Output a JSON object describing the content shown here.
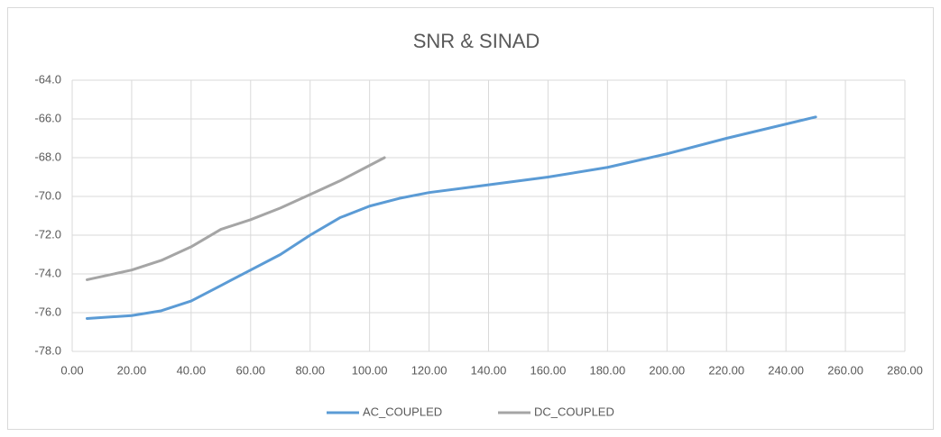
{
  "chart_data": {
    "type": "line",
    "title": "SNR & SINAD",
    "grid": true,
    "legend": "bottom",
    "xlim": [
      0,
      280
    ],
    "xticks": [
      {
        "value": 0,
        "label": "0.00"
      },
      {
        "value": 20,
        "label": "20.00"
      },
      {
        "value": 40,
        "label": "40.00"
      },
      {
        "value": 60,
        "label": "60.00"
      },
      {
        "value": 80,
        "label": "80.00"
      },
      {
        "value": 100,
        "label": "100.00"
      },
      {
        "value": 120,
        "label": "120.00"
      },
      {
        "value": 140,
        "label": "140.00"
      },
      {
        "value": 160,
        "label": "160.00"
      },
      {
        "value": 180,
        "label": "180.00"
      },
      {
        "value": 200,
        "label": "200.00"
      },
      {
        "value": 220,
        "label": "220.00"
      },
      {
        "value": 240,
        "label": "240.00"
      },
      {
        "value": 260,
        "label": "260.00"
      },
      {
        "value": 280,
        "label": "280.00"
      }
    ],
    "ylim": [
      -78,
      -64
    ],
    "yticks": [
      {
        "value": -64,
        "label": "-64.0"
      },
      {
        "value": -66,
        "label": "-66.0"
      },
      {
        "value": -68,
        "label": "-68.0"
      },
      {
        "value": -70,
        "label": "-70.0"
      },
      {
        "value": -72,
        "label": "-72.0"
      },
      {
        "value": -74,
        "label": "-74.0"
      },
      {
        "value": -76,
        "label": "-76.0"
      },
      {
        "value": -78,
        "label": "-78.0"
      }
    ],
    "series": [
      {
        "name": "AC_COUPLED",
        "color": "#5b9bd5",
        "x": [
          5,
          20,
          30,
          40,
          50,
          60,
          70,
          80,
          90,
          100,
          110,
          120,
          140,
          160,
          180,
          200,
          220,
          250
        ],
        "values": [
          -76.3,
          -76.15,
          -75.9,
          -75.4,
          -74.6,
          -73.8,
          -73.0,
          -72.0,
          -71.1,
          -70.5,
          -70.1,
          -69.8,
          -69.4,
          -69.0,
          -68.5,
          -67.8,
          -67.0,
          -65.9
        ]
      },
      {
        "name": "DC_COUPLED",
        "color": "#a5a5a5",
        "x": [
          5,
          20,
          30,
          40,
          50,
          60,
          70,
          80,
          90,
          105
        ],
        "values": [
          -74.3,
          -73.8,
          -73.3,
          -72.6,
          -71.7,
          -71.2,
          -70.6,
          -69.9,
          -69.2,
          -68.0
        ]
      }
    ]
  }
}
